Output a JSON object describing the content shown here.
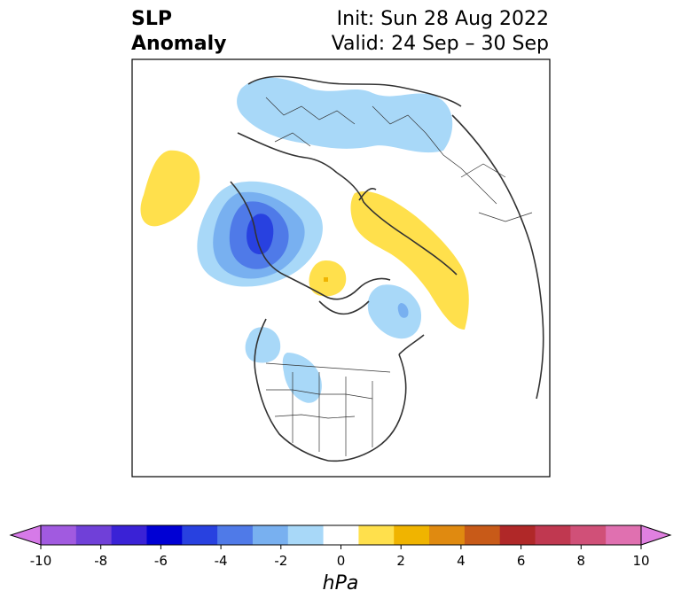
{
  "title": {
    "left_line1": "SLP",
    "left_line2": "Anomaly",
    "right_line1": "Init: Sun 28 Aug 2022",
    "right_line2": "Valid: 24 Sep – 30 Sep"
  },
  "colorbar": {
    "units": "hPa",
    "tick_labels": [
      "-10",
      "-8",
      "-6",
      "-4",
      "-2",
      "0",
      "2",
      "4",
      "6",
      "8",
      "10"
    ],
    "extend": "both",
    "colors": [
      "#d67ae8",
      "#a15ae0",
      "#7040d8",
      "#3a22d6",
      "#0000d4",
      "#2841e0",
      "#4f7ae8",
      "#78b0f0",
      "#a8d8f8",
      "#ffffff",
      "#ffe04c",
      "#f0b400",
      "#e08a10",
      "#c85a18",
      "#b02828",
      "#c03850",
      "#d05078",
      "#e070b0",
      "#e080e0"
    ]
  },
  "map": {
    "projection": "north-polar",
    "colors": {
      "border": "#333333",
      "frame": "#000000"
    }
  }
}
